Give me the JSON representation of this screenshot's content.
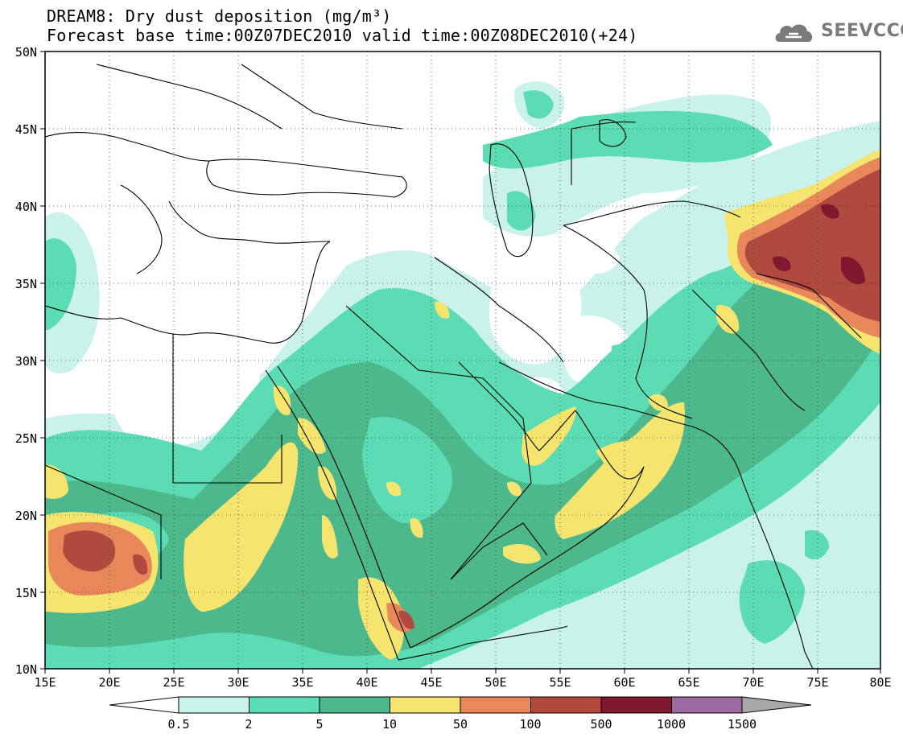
{
  "header": {
    "title_line1": "DREAM8: Dry dust deposition (mg/m³)",
    "title_line2": "Forecast base time:00Z07DEC2010 valid time:00Z08DEC2010(+24)",
    "logo_text": "SEEVCCC"
  },
  "map": {
    "lat_labels": [
      "50N",
      "45N",
      "40N",
      "35N",
      "30N",
      "25N",
      "20N",
      "15N",
      "10N"
    ],
    "lon_labels": [
      "15E",
      "20E",
      "25E",
      "30E",
      "35E",
      "40E",
      "45E",
      "50E",
      "55E",
      "60E",
      "65E",
      "70E",
      "75E",
      "80E"
    ],
    "extent": {
      "lon_min": 15,
      "lon_max": 80,
      "lat_min": 10,
      "lat_max": 50
    }
  },
  "legend": {
    "ticks": [
      "0.5",
      "2",
      "5",
      "10",
      "50",
      "100",
      "500",
      "1000",
      "1500"
    ],
    "colors": [
      "#c8f2ea",
      "#5cdcb4",
      "#4cb88c",
      "#f5e46e",
      "#e8875a",
      "#b04a3e",
      "#801830",
      "#9b6aa0"
    ],
    "under_color": "#ffffff",
    "over_color": "#a8a8a8"
  },
  "palette": {
    "c05": "#c8f2ea",
    "c2": "#5cdcb4",
    "c5": "#4cb88c",
    "c10": "#f5e46e",
    "c50": "#e8875a",
    "c100": "#b04a3e",
    "c500": "#801830"
  }
}
